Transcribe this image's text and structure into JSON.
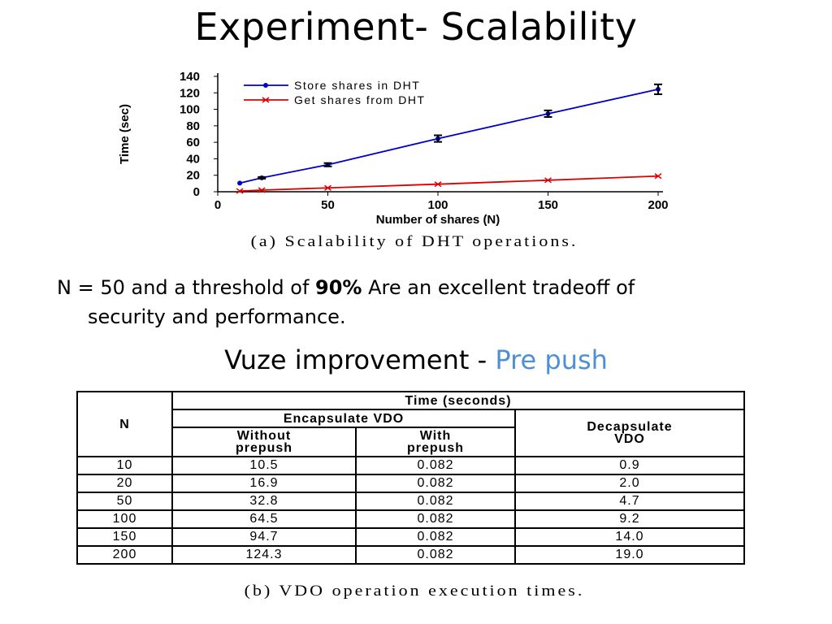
{
  "slide": {
    "title": "Experiment- Scalability",
    "caption_a": "(a)  Scalability of DHT operations.",
    "note": {
      "part1": "N = 50 and a threshold of ",
      "bold": "90%",
      "part2": "  Are  an excellent tradeoff of",
      "line2": "security and performance."
    },
    "subhead": {
      "main": "Vuze improvement - ",
      "accent": "Pre push"
    },
    "caption_b": "(b)  VDO operation execution times."
  },
  "colors": {
    "store": "#0000cc",
    "get": "#dd0000",
    "accent": "#4f8fd6"
  },
  "chart_data": {
    "type": "line",
    "xlabel": "Number of shares (N)",
    "ylabel": "Time (sec)",
    "xlim": [
      0,
      200
    ],
    "ylim": [
      0,
      140
    ],
    "xticks": [
      0,
      50,
      100,
      150,
      200
    ],
    "yticks": [
      0,
      20,
      40,
      60,
      80,
      100,
      120,
      140
    ],
    "grid": false,
    "legend": "top-left",
    "series": [
      {
        "name": "Store shares in DHT",
        "x": [
          10,
          20,
          50,
          100,
          150,
          200
        ],
        "y": [
          10.5,
          16.9,
          32.8,
          64.5,
          94.7,
          124.3
        ],
        "error": [
          0,
          1,
          2,
          4,
          4,
          6
        ]
      },
      {
        "name": "Get shares from DHT",
        "x": [
          10,
          20,
          50,
          100,
          150,
          200
        ],
        "y": [
          0.9,
          2.0,
          4.7,
          9.2,
          14.0,
          19.0
        ],
        "error": [
          0,
          0,
          0,
          0,
          0,
          0
        ]
      }
    ]
  },
  "table": {
    "header_n": "N",
    "header_time": "Time (seconds)",
    "header_encap": "Encapsulate VDO",
    "header_without_1": "Without",
    "header_without_2": "prepush",
    "header_with_1": "With",
    "header_with_2": "prepush",
    "header_decap_1": "Decapsulate",
    "header_decap_2": "VDO",
    "rows": [
      [
        "10",
        "10.5",
        "0.082",
        "0.9"
      ],
      [
        "20",
        "16.9",
        "0.082",
        "2.0"
      ],
      [
        "50",
        "32.8",
        "0.082",
        "4.7"
      ],
      [
        "100",
        "64.5",
        "0.082",
        "9.2"
      ],
      [
        "150",
        "94.7",
        "0.082",
        "14.0"
      ],
      [
        "200",
        "124.3",
        "0.082",
        "19.0"
      ]
    ]
  }
}
